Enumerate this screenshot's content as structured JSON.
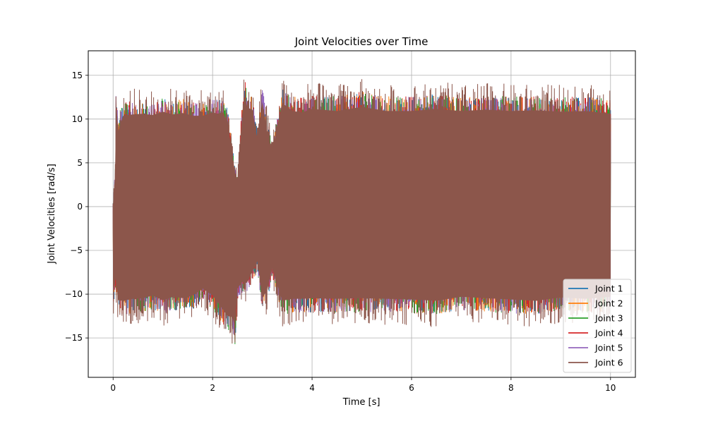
{
  "chart_data": {
    "type": "line",
    "title": "Joint Velocities over Time",
    "xlabel": "Time [s]",
    "ylabel": "Joint Velocities [rad/s]",
    "xlim": [
      -0.5,
      10.5
    ],
    "ylim": [
      -19.5,
      17.8
    ],
    "xticks": [
      0,
      2,
      4,
      6,
      8,
      10
    ],
    "xtick_labels": [
      "0",
      "2",
      "4",
      "6",
      "8",
      "10"
    ],
    "yticks": [
      -15,
      -10,
      -5,
      0,
      5,
      10,
      15
    ],
    "ytick_labels": [
      "−15",
      "−10",
      "−5",
      "0",
      "5",
      "10",
      "15"
    ],
    "grid": true,
    "legend_position": "lower-right",
    "series": [
      {
        "name": "Joint 1",
        "color": "#1f77b4"
      },
      {
        "name": "Joint 2",
        "color": "#ff7f0e"
      },
      {
        "name": "Joint 3",
        "color": "#2ca02c"
      },
      {
        "name": "Joint 4",
        "color": "#d62728"
      },
      {
        "name": "Joint 5",
        "color": "#9467bd"
      },
      {
        "name": "Joint 6",
        "color": "#8c564b",
        "envelope": {
          "x": [
            0.0,
            0.04,
            0.06,
            0.1,
            0.2,
            0.4,
            0.6,
            0.8,
            1.0,
            1.2,
            1.4,
            1.6,
            1.8,
            2.0,
            2.1,
            2.2,
            2.3,
            2.4,
            2.45,
            2.5,
            2.6,
            2.65,
            2.7,
            2.8,
            2.9,
            3.0,
            3.1,
            3.2,
            3.4,
            3.6,
            3.8,
            4.0,
            4.5,
            5.0,
            5.5,
            6.0,
            6.5,
            7.0,
            7.5,
            8.0,
            8.5,
            9.0,
            9.5,
            10.0
          ],
          "max": [
            0.5,
            5.0,
            15.6,
            11.0,
            13.3,
            13.5,
            13.6,
            13.4,
            13.9,
            13.5,
            13.7,
            13.3,
            13.3,
            13.8,
            13.6,
            13.8,
            12.5,
            7.5,
            5.0,
            4.0,
            14.0,
            16.1,
            14.5,
            14.2,
            10.0,
            15.3,
            11.0,
            8.0,
            15.2,
            14.0,
            13.8,
            14.3,
            14.0,
            14.6,
            14.0,
            14.0,
            14.3,
            14.0,
            14.2,
            14.0,
            14.1,
            13.9,
            14.0,
            13.6
          ],
          "min": [
            -13.2,
            -10.5,
            -11.0,
            -13.7,
            -13.8,
            -13.5,
            -13.4,
            -13.0,
            -13.7,
            -13.2,
            -13.4,
            -13.0,
            -12.0,
            -13.0,
            -14.0,
            -15.0,
            -16.0,
            -16.2,
            -17.8,
            -12.0,
            -11.0,
            -11.2,
            -11.0,
            -9.5,
            -8.0,
            -13.5,
            -12.0,
            -9.0,
            -13.8,
            -13.5,
            -13.5,
            -13.4,
            -13.5,
            -13.4,
            -13.5,
            -13.6,
            -13.8,
            -13.2,
            -13.4,
            -13.6,
            -13.8,
            -13.3,
            -13.5,
            -13.2
          ]
        }
      }
    ]
  }
}
